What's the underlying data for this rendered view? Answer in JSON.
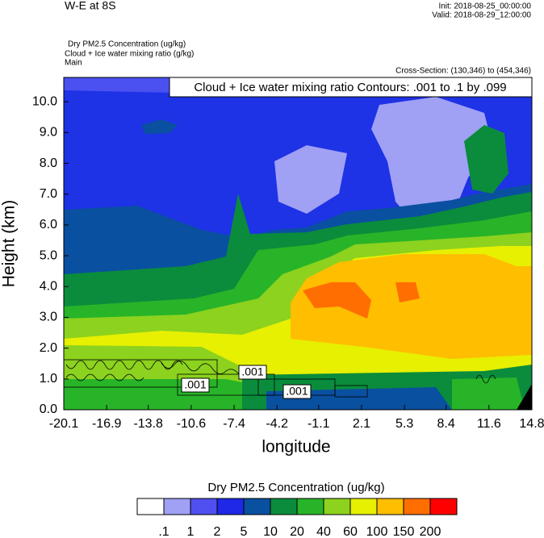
{
  "chart_data": {
    "type": "contour",
    "title": "W-E at 8S",
    "init": "Init: 2018-08-25_00:00:00",
    "valid": "Valid: 2018-08-29_12:00:00",
    "field_lines": [
      "Dry PM2.5 Concentration   (ug/kg)",
      "Cloud + Ice water mixing ratio   (g/kg)",
      "Main"
    ],
    "cross_section": "Cross-Section: (130,346) to (454,346)",
    "contour_info": "Cloud + Ice water mixing ratio Contours: .001 to .1 by .099",
    "contour_labels": [
      ".001",
      ".001",
      ".001"
    ],
    "x_label": "longitude",
    "y_label": "Height (km)",
    "xlim": [
      -20.1,
      14.8
    ],
    "xticks": [
      -20.1,
      -16.9,
      -13.8,
      -10.6,
      -7.4,
      -4.2,
      -1.1,
      2.1,
      5.3,
      8.4,
      11.6,
      14.8
    ],
    "ylim": [
      0,
      10.79
    ],
    "yticks": [
      {
        "value": 0,
        "label": "0.0"
      },
      {
        "value": 1,
        "label": "1.0"
      },
      {
        "value": 2,
        "label": "2.0"
      },
      {
        "value": 3,
        "label": "3.0"
      },
      {
        "value": 4,
        "label": "4.0"
      },
      {
        "value": 5,
        "label": "5.0"
      },
      {
        "value": 6,
        "label": "6.0"
      },
      {
        "value": 7,
        "label": "7.0"
      },
      {
        "value": 8,
        "label": "8.0"
      },
      {
        "value": 9,
        "label": "9.0"
      },
      {
        "value": 10,
        "label": "10.0"
      }
    ],
    "colorbar_title": "Dry PM2.5 Concentration  (ug/kg)",
    "levels": [
      {
        "value": 0.1,
        "label": ".1"
      },
      1,
      2,
      5,
      10,
      20,
      40,
      60,
      100,
      150,
      200
    ],
    "colors": [
      "#ffffff",
      "#a0a0f5",
      "#5050f0",
      "#1e28e6",
      "#0a50a0",
      "#0a8c3c",
      "#28b428",
      "#8cd21e",
      "#e6f000",
      "#ffbe00",
      "#ff6e00",
      "#ff0000"
    ]
  }
}
